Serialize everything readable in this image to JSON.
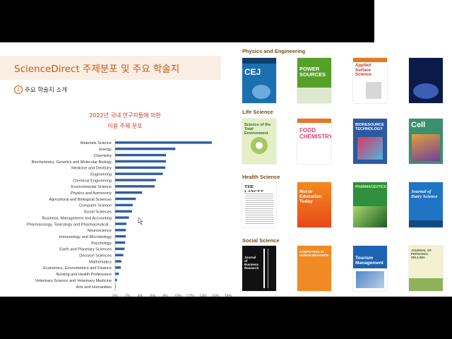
{
  "slide": {
    "title": "ScienceDirect 주제분포 및 주요 학술지",
    "subtitle_number": "1",
    "subtitle": "주요 학술지 소개"
  },
  "chart_title": {
    "line1": "2022년 국내 연구자들에 의한",
    "line2": "이용 주제 분포"
  },
  "chart_data": {
    "type": "bar",
    "orientation": "horizontal",
    "categories": [
      "Materials Science",
      "Energy",
      "Chemistry",
      "Biochemistry, Genetics and Molecular Biology",
      "Medicine and Dentistry",
      "Engineering",
      "Chemical Engineering",
      "Environmental Science",
      "Physics and Astronomy",
      "Agricultural and Biological Sciences",
      "Computer Science",
      "Social Sciences",
      "Business, Management and Accounting",
      "Pharmacology, Toxicology and Pharmaceutical...",
      "Neuroscience",
      "Immunology and Microbiology",
      "Psychology",
      "Earth and Planetary Sciences",
      "Decision Sciences",
      "Mathematics",
      "Economics, Econometrics and Finance",
      "Nursing and Health Professions",
      "Veterinary Science and Veterinary Medicine",
      "Arts and Humanities"
    ],
    "values": [
      15.4,
      9.6,
      8.1,
      8.1,
      8.0,
      7.6,
      6.5,
      6.3,
      4.3,
      3.3,
      2.8,
      2.7,
      2.2,
      1.8,
      1.7,
      1.7,
      1.6,
      1.5,
      1.3,
      1.0,
      0.9,
      0.6,
      0.3,
      0.1
    ],
    "xticks": [
      "0%",
      "2%",
      "4%",
      "6%",
      "8%",
      "10%",
      "12%",
      "14%",
      "16%",
      "18%"
    ],
    "xlim": [
      0,
      18
    ],
    "bar_color": "#2e5f9e",
    "grid": false
  },
  "sections": [
    {
      "label": "Physics and Engineering",
      "journals": [
        {
          "name": "CEJ",
          "icon": "cej-cover"
        },
        {
          "name": "POWER SOURCES",
          "icon": "journal-of-power-sources-cover"
        },
        {
          "name": "Applied Surface Science",
          "icon": "applied-surface-science-cover"
        },
        {
          "name": "",
          "icon": "partially-hidden-cover"
        }
      ]
    },
    {
      "label": "Life Science",
      "journals": [
        {
          "name": "Science of the Total Environment",
          "icon": "total-environment-cover"
        },
        {
          "name": "FOOD CHEMISTRY",
          "icon": "food-chemistry-cover"
        },
        {
          "name": "BIORESOURCE TECHNOLOGY",
          "icon": "bioresource-technology-cover"
        },
        {
          "name": "Cell",
          "icon": "cell-cover"
        }
      ]
    },
    {
      "label": "Health Science",
      "journals": [
        {
          "name": "THE LANCET",
          "icon": "lancet-cover"
        },
        {
          "name": "Nurse Education Today",
          "icon": "nurse-education-today-cover"
        },
        {
          "name": "PHARMACEUTICS",
          "icon": "pharmaceutics-cover"
        },
        {
          "name": "Journal of Dairy Science",
          "icon": "dairy-science-cover"
        }
      ]
    },
    {
      "label": "Social Science",
      "journals": [
        {
          "name": "Journal of Business Research",
          "icon": "business-research-cover"
        },
        {
          "name": "COMPUTERS IN HUMAN BEHAVIOR",
          "icon": "computers-in-human-behavior-cover"
        },
        {
          "name": "Tourism Management",
          "icon": "tourism-management-cover"
        },
        {
          "name": "JOURNAL OF PERSONAL SELLING",
          "icon": "journal-cover"
        }
      ]
    }
  ],
  "colors": {
    "accent": "#c55a11",
    "title_bg": "#fbeee4",
    "section_label": "#7a4a16",
    "chart_title": "#c0392b",
    "bar": "#2e5f9e"
  }
}
